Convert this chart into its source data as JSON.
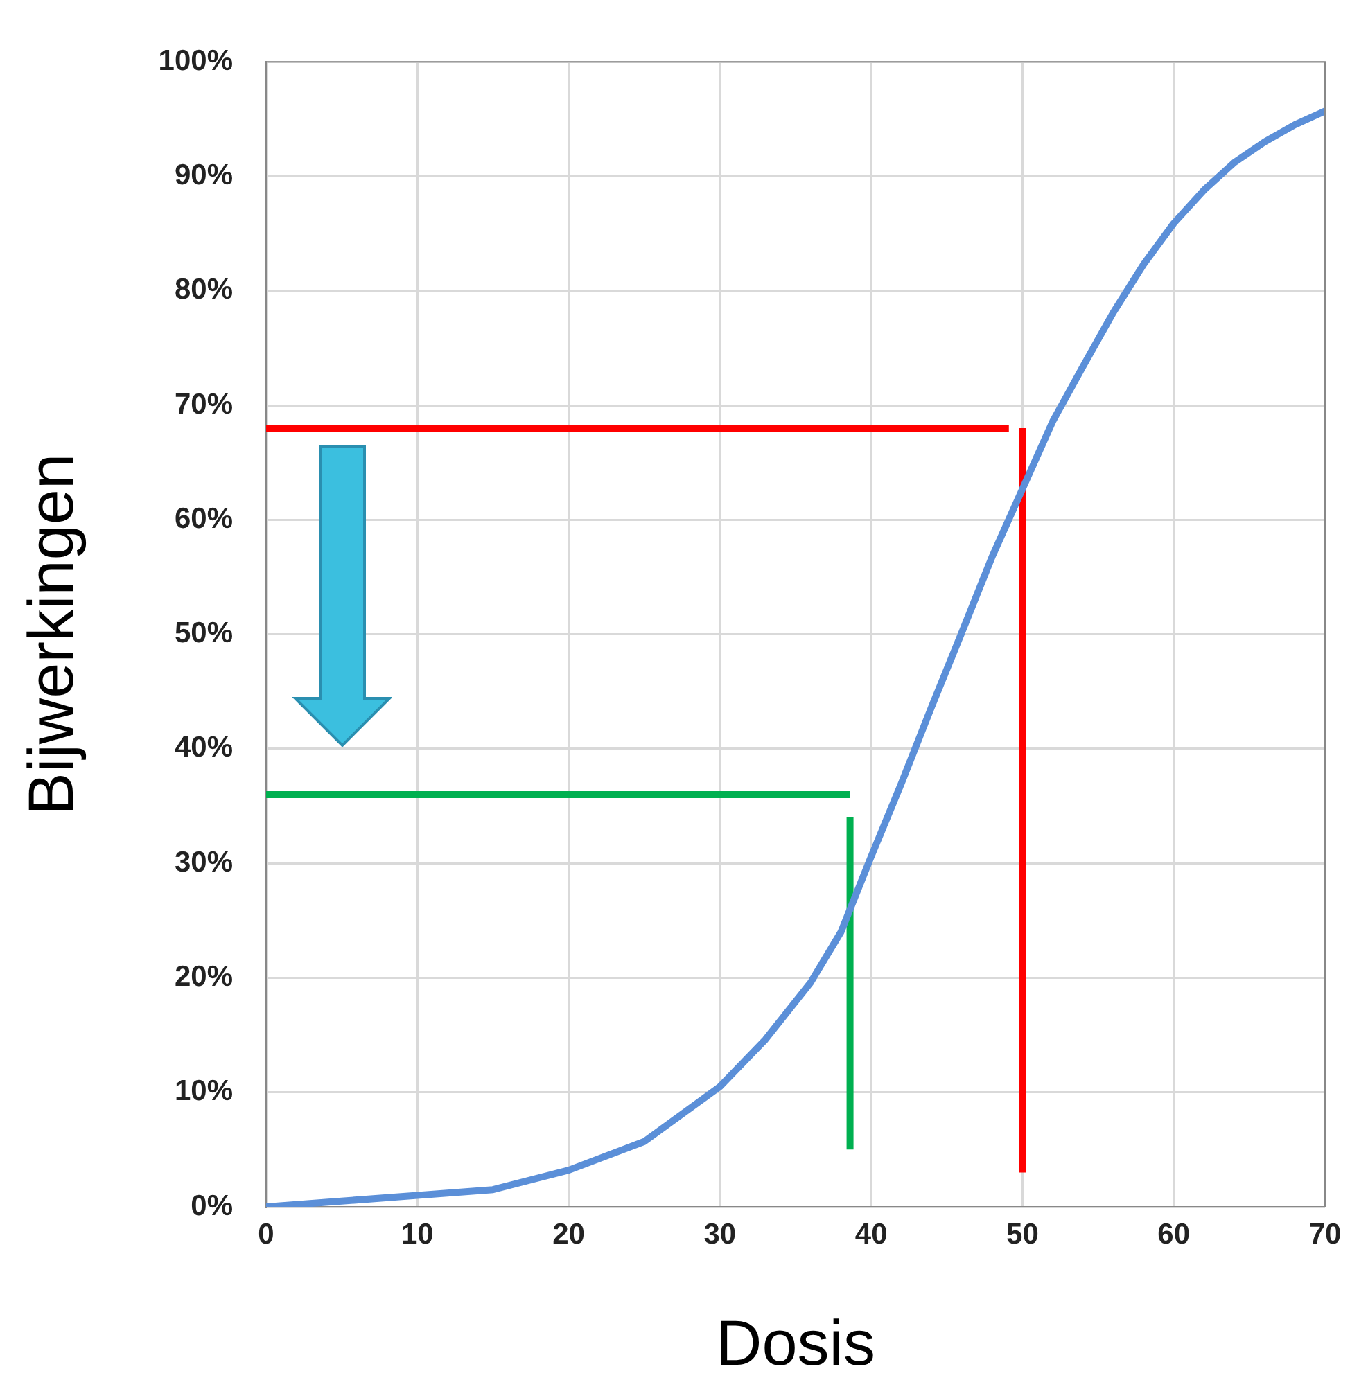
{
  "chart_data": {
    "type": "line",
    "xlabel": "Dosis",
    "ylabel": "Bijwerkingen",
    "xlim": [
      0,
      70
    ],
    "xticks": [
      0,
      10,
      20,
      30,
      40,
      50,
      60,
      70
    ],
    "ylim": [
      0,
      100
    ],
    "yticks": [
      {
        "value": 0,
        "label": "0%"
      },
      {
        "value": 10,
        "label": "10%"
      },
      {
        "value": 20,
        "label": "20%"
      },
      {
        "value": 30,
        "label": "30%"
      },
      {
        "value": 40,
        "label": "40%"
      },
      {
        "value": 50,
        "label": "50%"
      },
      {
        "value": 60,
        "label": "60%"
      },
      {
        "value": 70,
        "label": "70%"
      },
      {
        "value": 80,
        "label": "80%"
      },
      {
        "value": 90,
        "label": "90%"
      },
      {
        "value": 100,
        "label": "100%"
      }
    ],
    "grid": true,
    "series": [
      {
        "color": "#5b8fd8",
        "x": [
          0,
          5,
          10,
          15,
          20,
          25,
          30,
          33,
          36,
          38,
          40,
          42,
          44,
          46,
          48,
          50,
          52,
          54,
          56,
          58,
          60,
          62,
          64,
          66,
          68,
          70
        ],
        "values": [
          0,
          0.5,
          1,
          1.5,
          3.2,
          5.7,
          10.5,
          14.6,
          19.6,
          24,
          30.6,
          37,
          43.7,
          50.2,
          56.8,
          62.7,
          68.6,
          73.4,
          78.1,
          82.3,
          85.9,
          88.8,
          91.2,
          93,
          94.5,
          95.7
        ]
      },
      {
        "color": "#ff0000",
        "x": [
          0,
          49.1
        ],
        "values": [
          68,
          68
        ]
      },
      {
        "color": "#ff0000",
        "x": [
          50,
          50
        ],
        "values": [
          3,
          68
        ]
      },
      {
        "color": "#00b050",
        "x": [
          0,
          38.6
        ],
        "values": [
          36,
          36
        ]
      },
      {
        "color": "#00b050",
        "x": [
          38.6,
          38.6
        ],
        "values": [
          5,
          34
        ]
      }
    ]
  }
}
